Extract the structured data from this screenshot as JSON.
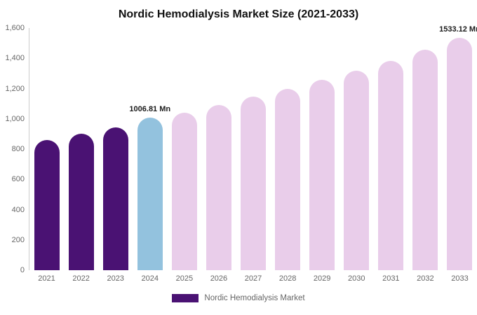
{
  "legend": {
    "label": "Nordic Hemodialysis Market",
    "swatch_color": "#4a1273"
  },
  "colors": {
    "dark_purple": "#4a1273",
    "light_blue": "#93c2de",
    "light_pink": "#e9cdea",
    "axis_line": "#cccccc",
    "axis_text": "#666666"
  },
  "chart_data": {
    "type": "bar",
    "title": "Nordic Hemodialysis Market Size (2021-2033)",
    "xlabel": "",
    "ylabel": "",
    "categories": [
      "2021",
      "2022",
      "2023",
      "2024",
      "2025",
      "2026",
      "2027",
      "2028",
      "2029",
      "2030",
      "2031",
      "2032",
      "2033"
    ],
    "values": [
      860,
      900,
      945,
      1006.81,
      1040,
      1090,
      1145,
      1200,
      1260,
      1320,
      1385,
      1455,
      1533.12
    ],
    "bar_colors": [
      "#4a1273",
      "#4a1273",
      "#4a1273",
      "#93c2de",
      "#e9cdea",
      "#e9cdea",
      "#e9cdea",
      "#e9cdea",
      "#e9cdea",
      "#e9cdea",
      "#e9cdea",
      "#e9cdea",
      "#e9cdea"
    ],
    "ylim": [
      0,
      1600
    ],
    "yticks": [
      {
        "value": 0,
        "label": "0"
      },
      {
        "value": 200,
        "label": "200"
      },
      {
        "value": 400,
        "label": "400"
      },
      {
        "value": 600,
        "label": "600"
      },
      {
        "value": 800,
        "label": "800"
      },
      {
        "value": 1000,
        "label": "1,000"
      },
      {
        "value": 1200,
        "label": "1,200"
      },
      {
        "value": 1400,
        "label": "1,400"
      },
      {
        "value": 1600,
        "label": "1,600"
      }
    ],
    "annotations": [
      {
        "category": "2024",
        "text": "1006.81 Mn"
      },
      {
        "category": "2033",
        "text": "1533.12 Mn"
      }
    ],
    "grid": false,
    "legend_position": "bottom",
    "legend_entries": [
      "Nordic Hemodialysis Market"
    ]
  }
}
